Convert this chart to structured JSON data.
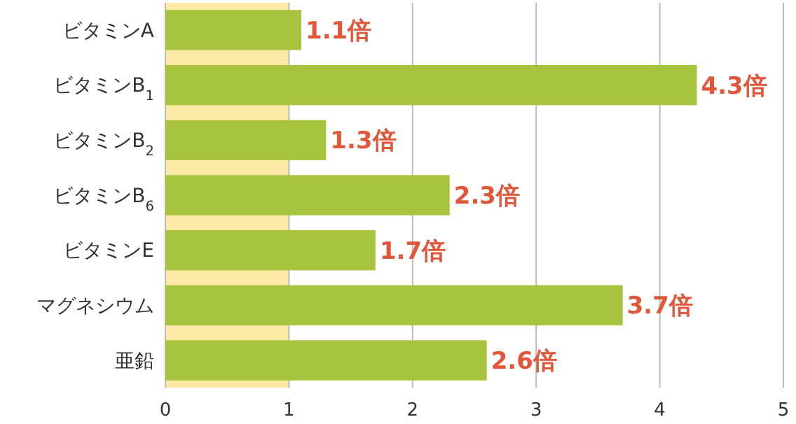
{
  "chart_data": {
    "type": "bar",
    "orientation": "horizontal",
    "categories": [
      "ビタミンA",
      "ビタミンB$_{1}$",
      "ビタミンB$_{2}$",
      "ビタミンB$_{6}$",
      "ビタミンE",
      "マグネシウム",
      "亜鉛"
    ],
    "values": [
      1.1,
      4.3,
      1.3,
      2.3,
      1.7,
      3.7,
      2.6
    ],
    "color": "#a8c43e",
    "value_labels": [
      "1.1倍",
      "4.3倍",
      "1.3倍",
      "2.3倍",
      "1.7倍",
      "3.7倍",
      "2.6倍"
    ],
    "xlim": [
      0,
      5
    ],
    "xticks": [
      0,
      1,
      2,
      3,
      4,
      5
    ],
    "grid": "x",
    "bands": [
      {
        "axis": "x",
        "from": 0,
        "to": 1,
        "color": "#fde9a6"
      }
    ]
  }
}
